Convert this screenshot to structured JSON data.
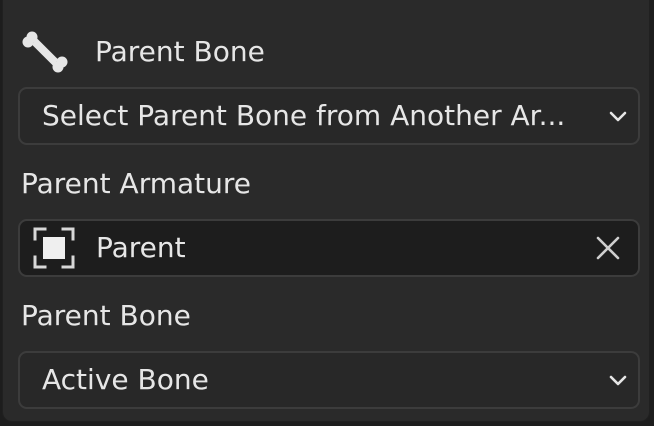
{
  "header": {
    "title": "Parent Bone",
    "icon": "bone-icon"
  },
  "parent_mode_dropdown": {
    "value": "Select Parent Bone from Another Ar...",
    "icon": "chevron-down-icon"
  },
  "parent_armature": {
    "label": "Parent Armature",
    "value": "Parent",
    "icon": "object-icon",
    "clear_icon": "close-icon"
  },
  "parent_bone": {
    "label": "Parent Bone",
    "value": "Active Bone",
    "icon": "chevron-down-icon"
  },
  "colors": {
    "panel_bg": "#2a2a2a",
    "field_bg": "#1d1d1d",
    "border": "#3c3c3c",
    "text": "#e6e6e6"
  }
}
